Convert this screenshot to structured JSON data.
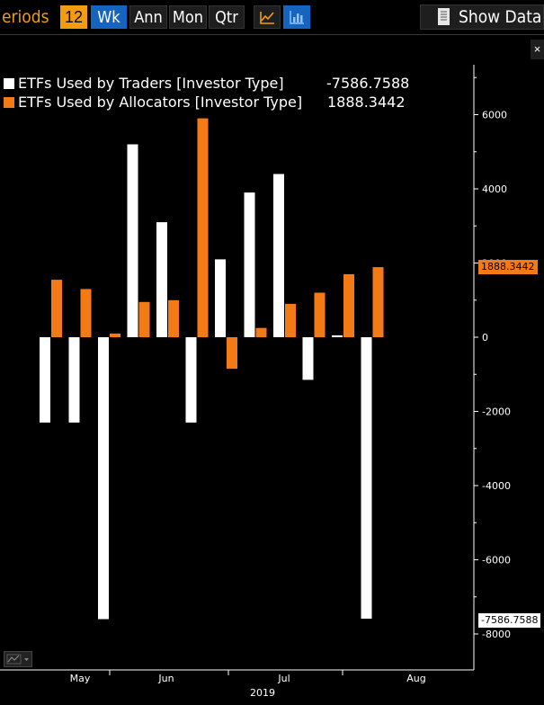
{
  "toolbar": {
    "periods_label": "eriods",
    "periods_value": "12",
    "buttons": [
      "Wk",
      "Ann",
      "Mon",
      "Qtr"
    ],
    "active_button": "Wk",
    "show_data_label": "Show Data",
    "close_label": "×"
  },
  "legend": {
    "items": [
      {
        "label": "ETFs Used by Traders [Investor Type]",
        "value": "-7586.7588",
        "color": "#ffffff"
      },
      {
        "label": "ETFs Used by Allocators [Investor Type]",
        "value": "1888.3442",
        "color": "#f47a16"
      }
    ]
  },
  "last_value_tags": {
    "orange": "1888.3442",
    "white": "-7586.7588"
  },
  "chart_data": {
    "type": "bar",
    "series": [
      {
        "name": "ETFs Used by Traders [Investor Type]",
        "color": "#ffffff",
        "values": [
          -2300,
          -2300,
          -7600,
          5200,
          3100,
          -2300,
          2100,
          3900,
          4400,
          -1150,
          50,
          -7586.7588
        ]
      },
      {
        "name": "ETFs Used by Allocators [Investor Type]",
        "color": "#f47a16",
        "values": [
          1550,
          1300,
          100,
          950,
          1000,
          5900,
          -850,
          250,
          900,
          1200,
          1700,
          1888.3442
        ]
      }
    ],
    "ylim": [
      -8800,
      7300
    ],
    "yticks": [
      6000,
      4000,
      2000,
      0,
      -2000,
      -4000,
      -6000,
      -8000
    ],
    "ytick_labels": [
      "6000",
      "4000",
      "2000",
      "0",
      "-2000",
      "-4000",
      "-6000",
      "-8000"
    ],
    "xtick_labels": [
      "May",
      "Jun",
      "Jul",
      "Aug"
    ],
    "year_label": "2019",
    "grid": false
  }
}
